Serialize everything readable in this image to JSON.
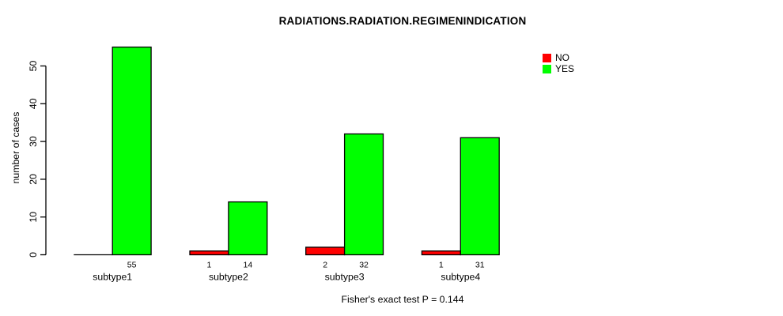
{
  "chart_data": {
    "type": "bar",
    "grouped": true,
    "title": "RADIATIONS.RADIATION.REGIMENINDICATION",
    "categories": [
      "subtype1",
      "subtype2",
      "subtype3",
      "subtype4"
    ],
    "series": [
      {
        "name": "NO",
        "color": "#FF0000",
        "values": [
          0,
          1,
          2,
          1
        ]
      },
      {
        "name": "YES",
        "color": "#00FF00",
        "values": [
          55,
          14,
          32,
          31
        ]
      }
    ],
    "xlabel": "",
    "ylabel": "number of cases",
    "yticks": [
      0,
      10,
      20,
      30,
      40,
      50
    ],
    "ylim": [
      0,
      55
    ],
    "grid": false,
    "legend_position": "top-right",
    "bar_value_labels": {
      "show": true,
      "hide_zero": true
    },
    "annotation": "Fisher's exact test P = 0.144"
  }
}
